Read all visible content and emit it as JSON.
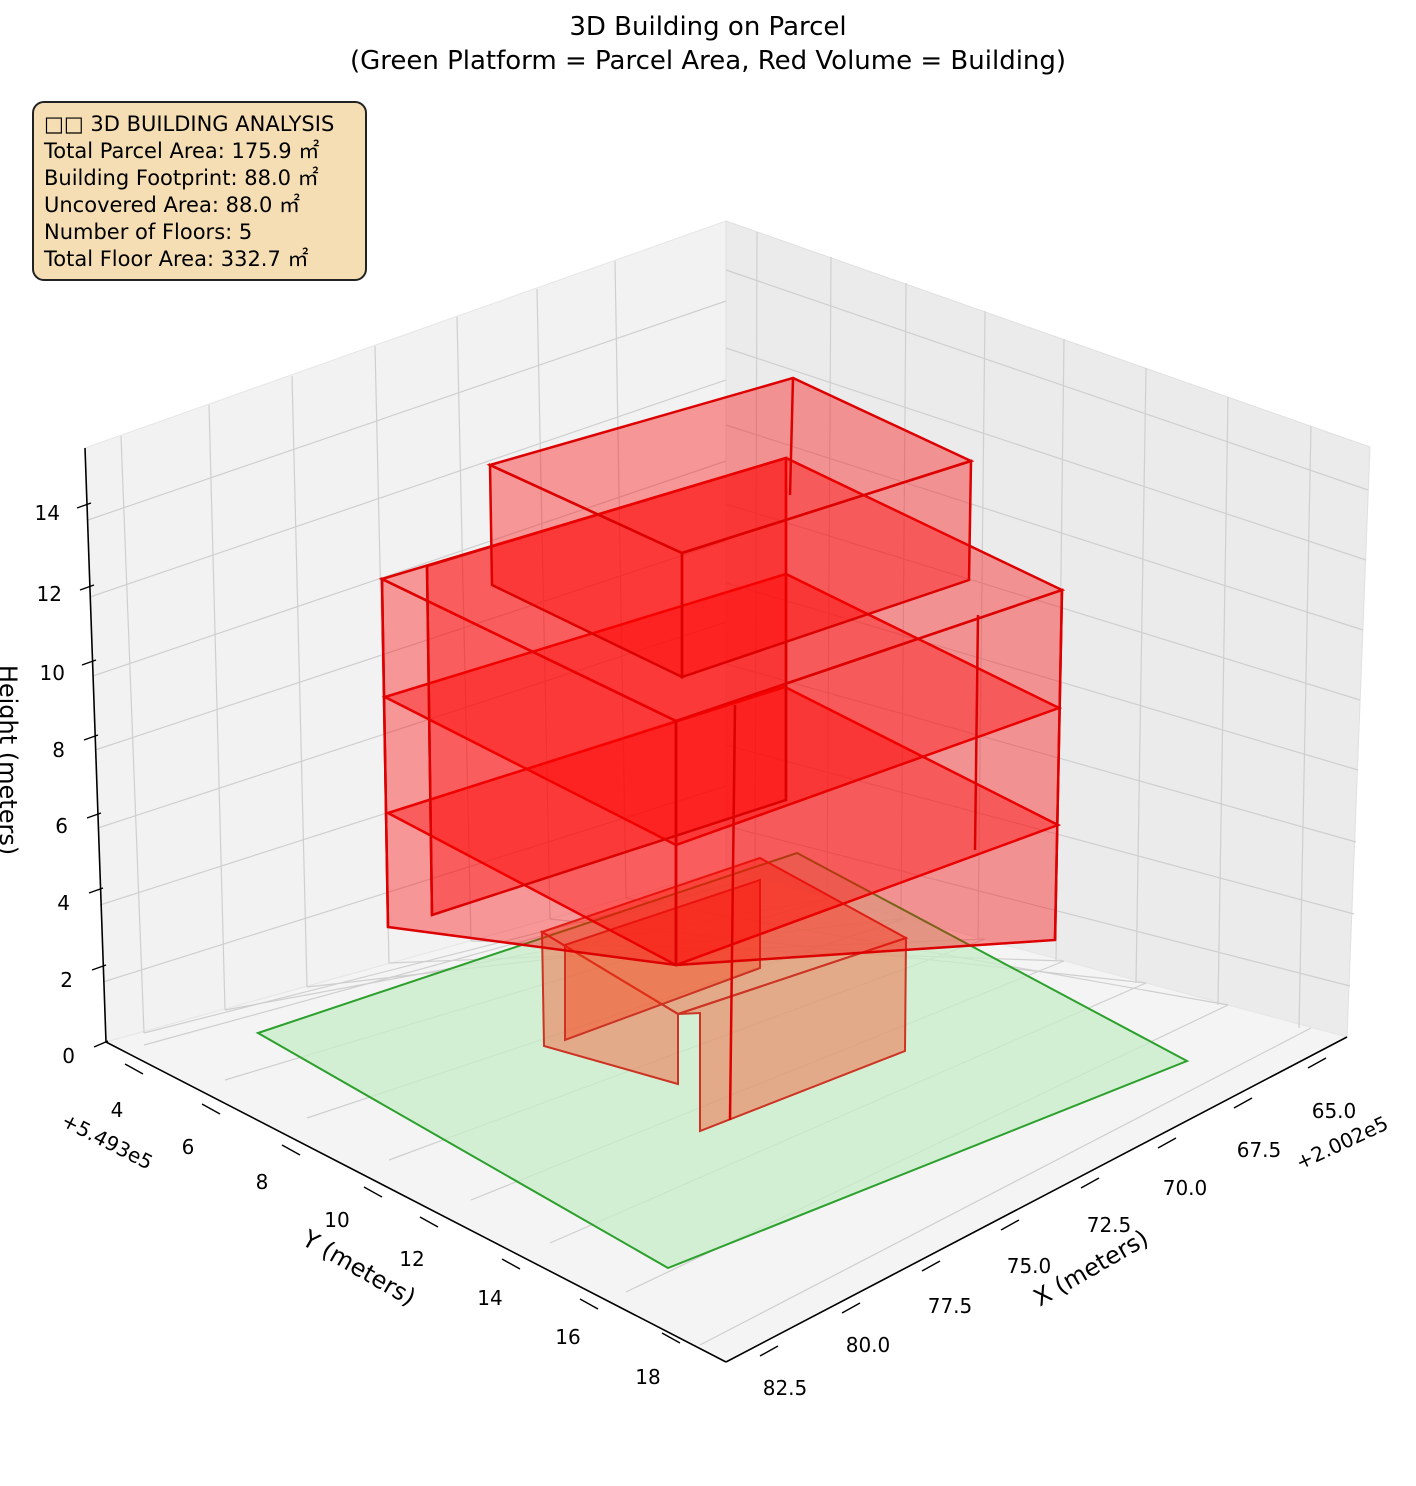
{
  "title": "3D Building on Parcel",
  "subtitle": "(Green Platform = Parcel Area, Red Volume = Building)",
  "info_box": {
    "heading": "□□ 3D BUILDING ANALYSIS",
    "lines": [
      "Total Parcel Area: 175.9 ㎡",
      "Building Footprint: 88.0 ㎡",
      "Uncovered Area: 88.0 ㎡",
      "Number of Floors: 5",
      "Total Floor Area: 332.7 ㎡"
    ]
  },
  "chart_data": {
    "type": "3d-polygons",
    "title": "3D Building on Parcel\n(Green Platform = Parcel Area, Red Volume = Building)",
    "xlabel": "X (meters)",
    "ylabel": "Y (meters)",
    "zlabel": "Height (meters)",
    "x_offset_label": "+2.002e5",
    "y_offset_label": "+5.493e5",
    "x_ticks": [
      "65.0",
      "67.5",
      "70.0",
      "72.5",
      "75.0",
      "77.5",
      "80.0",
      "82.5"
    ],
    "y_ticks": [
      "4",
      "6",
      "8",
      "10",
      "12",
      "14",
      "16",
      "18"
    ],
    "z_ticks": [
      "0",
      "2",
      "4",
      "6",
      "8",
      "10",
      "12",
      "14"
    ],
    "parcel_area_m2": 175.9,
    "building_footprint_m2": 88.0,
    "uncovered_area_m2": 88.0,
    "floors": 5,
    "total_floor_area_m2": 332.7,
    "colors": {
      "parcel_fill": "#d4f0d4",
      "parcel_edge": "#2ca02c",
      "building_fill": "#ff0000",
      "building_edge": "#dd0000",
      "label_box": "#f5deb3"
    }
  }
}
